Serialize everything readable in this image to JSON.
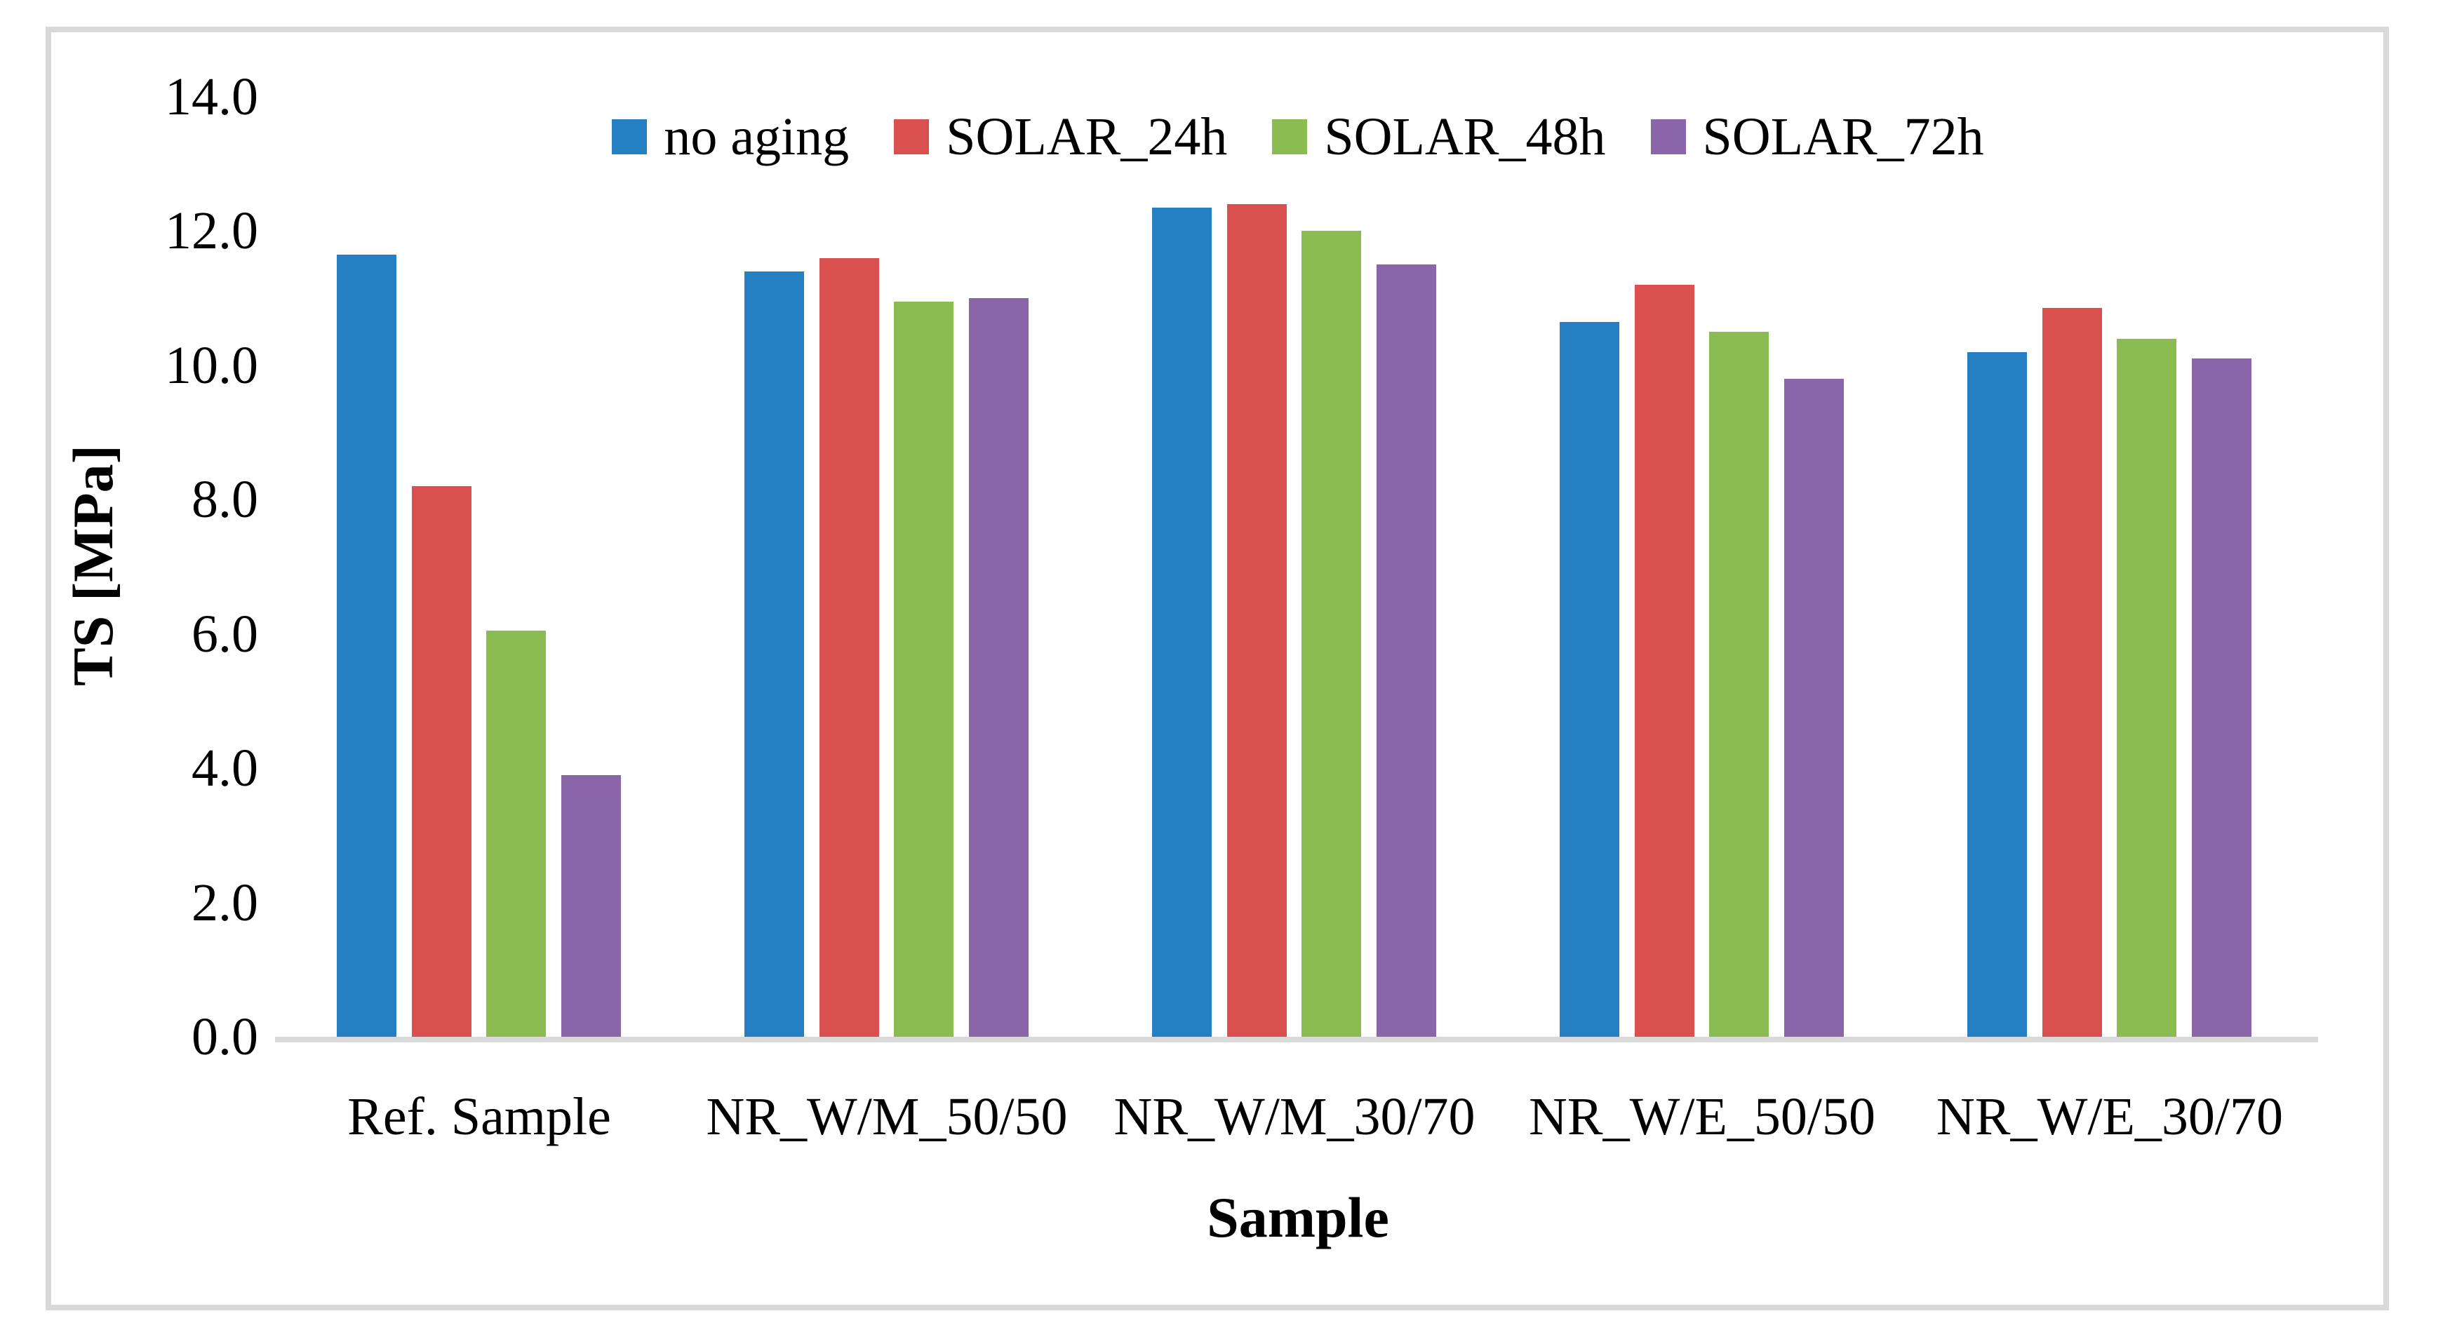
{
  "figure": {
    "frame_color": "#d9d9d9",
    "background": "#ffffff",
    "axis_line_color": "#d9d9d9",
    "text_color": "#000000"
  },
  "chart_data": {
    "type": "bar",
    "title": "",
    "xlabel": "Sample",
    "ylabel": "TS [MPa]",
    "ylim": [
      0,
      14
    ],
    "grid": false,
    "legend_position": "top-center",
    "yticks": [
      {
        "value": 0,
        "label": "0.0"
      },
      {
        "value": 2,
        "label": "2.0"
      },
      {
        "value": 4,
        "label": "4.0"
      },
      {
        "value": 6,
        "label": "6.0"
      },
      {
        "value": 8,
        "label": "8.0"
      },
      {
        "value": 10,
        "label": "10.0"
      },
      {
        "value": 12,
        "label": "12.0"
      },
      {
        "value": 14,
        "label": "14.0"
      }
    ],
    "categories": [
      "Ref. Sample",
      "NR_W/M_50/50",
      "NR_W/M_30/70",
      "NR_W/E_50/50",
      "NR_W/E_30/70"
    ],
    "series": [
      {
        "name": "no aging",
        "color": "#2580c3",
        "values": [
          11.65,
          11.4,
          12.35,
          10.65,
          10.2
        ]
      },
      {
        "name": "SOLAR_24h",
        "color": "#d9504e",
        "values": [
          8.2,
          11.6,
          12.4,
          11.2,
          10.85
        ]
      },
      {
        "name": "SOLAR_48h",
        "color": "#8bbc52",
        "values": [
          6.05,
          10.95,
          12.0,
          10.5,
          10.4
        ]
      },
      {
        "name": "SOLAR_72h",
        "color": "#8a66a9",
        "values": [
          3.9,
          11.0,
          11.5,
          9.8,
          10.1
        ]
      }
    ]
  }
}
